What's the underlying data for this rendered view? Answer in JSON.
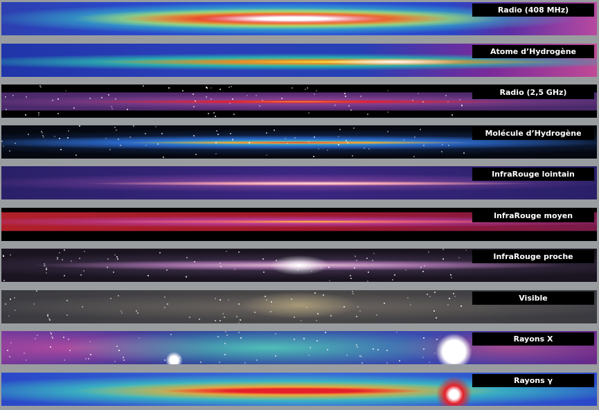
{
  "bands": [
    {
      "id": "radio-408",
      "label": "Radio (408 MHz)"
    },
    {
      "id": "atomic-hydrogen",
      "label": "Atome d’Hydrogène"
    },
    {
      "id": "radio-2-5",
      "label": "Radio (2,5 GHz)"
    },
    {
      "id": "molecular-hydrogen",
      "label": "Molécule d’Hydrogène"
    },
    {
      "id": "far-infrared",
      "label": "InfraRouge lointain"
    },
    {
      "id": "mid-infrared",
      "label": "InfraRouge moyen"
    },
    {
      "id": "near-infrared",
      "label": "InfraRouge proche"
    },
    {
      "id": "visible",
      "label": "Visible"
    },
    {
      "id": "x-rays",
      "label": "Rayons X"
    },
    {
      "id": "gamma-rays",
      "label": "Rayons γ"
    }
  ]
}
